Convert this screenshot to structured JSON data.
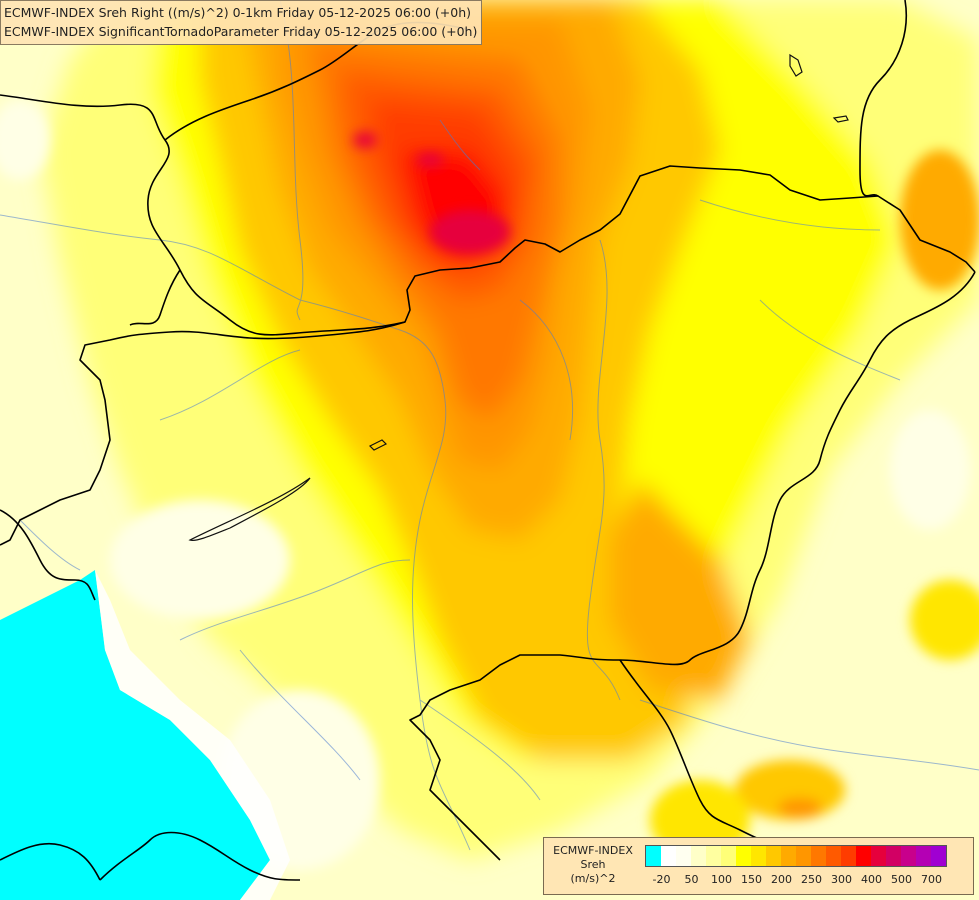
{
  "title": {
    "line1": "ECMWF-INDEX Sreh Right ((m/s)^2) 0-1km Friday 05-12-2025 06:00 (+0h)",
    "line2": "ECMWF-INDEX SignificantTornadoParameter Friday 05-12-2025 06:00 (+0h)"
  },
  "legend": {
    "line1": "ECMWF-INDEX",
    "line2": "Sreh",
    "line3": "(m/s)^2",
    "colors": [
      "#00ffff",
      "#ffffff",
      "#fffff0",
      "#ffffc8",
      "#ffffa0",
      "#ffff78",
      "#ffff00",
      "#ffe600",
      "#ffc800",
      "#ffaa00",
      "#ff9600",
      "#ff7800",
      "#ff5a00",
      "#ff3c00",
      "#ff0000",
      "#e6003c",
      "#d20064",
      "#c8008c",
      "#b400b4",
      "#a000d2",
      "#7800e6",
      "#5000c8",
      "#3000a0",
      "#000080"
    ],
    "ticks": [
      {
        "label": "-20",
        "index": 0.5
      },
      {
        "label": "50",
        "index": 2.5
      },
      {
        "label": "100",
        "index": 4.5
      },
      {
        "label": "150",
        "index": 6.5
      },
      {
        "label": "200",
        "index": 8.5
      },
      {
        "label": "250",
        "index": 10.5
      },
      {
        "label": "300",
        "index": 12.5
      },
      {
        "label": "400",
        "index": 14.5
      },
      {
        "label": "500",
        "index": 16.5
      },
      {
        "label": "700",
        "index": 18.5
      }
    ]
  }
}
